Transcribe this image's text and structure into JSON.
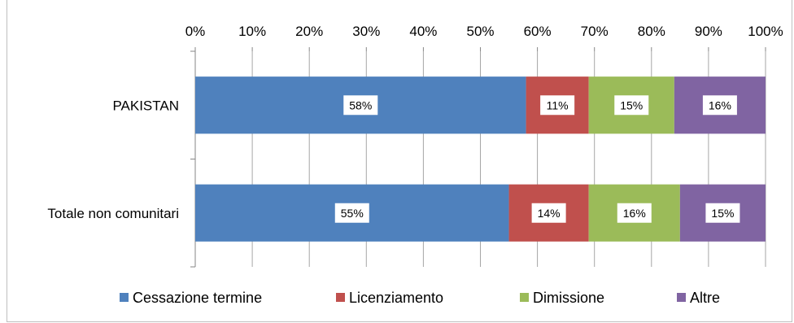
{
  "chart_data": {
    "type": "bar",
    "orientation": "horizontal",
    "stacked": "percent",
    "categories": [
      "PAKISTAN",
      "Totale non comunitari"
    ],
    "series": [
      {
        "name": "Cessazione termine",
        "values": [
          58,
          55
        ],
        "labels": [
          "58%",
          "55%"
        ],
        "color": "#4f81bd"
      },
      {
        "name": "Licenziamento",
        "values": [
          11,
          14
        ],
        "labels": [
          "11%",
          "14%"
        ],
        "color": "#c0504d"
      },
      {
        "name": "Dimissione",
        "values": [
          15,
          16
        ],
        "labels": [
          "15%",
          "16%"
        ],
        "color": "#9bbb59"
      },
      {
        "name": "Altre",
        "values": [
          16,
          15
        ],
        "labels": [
          "16%",
          "15%"
        ],
        "color": "#8064a2"
      }
    ],
    "x_ticks": [
      "0%",
      "10%",
      "20%",
      "30%",
      "40%",
      "50%",
      "60%",
      "70%",
      "80%",
      "90%",
      "100%"
    ],
    "xlim": [
      0,
      100
    ],
    "xaxis_position": "top",
    "grid": true,
    "legend_position": "bottom"
  }
}
